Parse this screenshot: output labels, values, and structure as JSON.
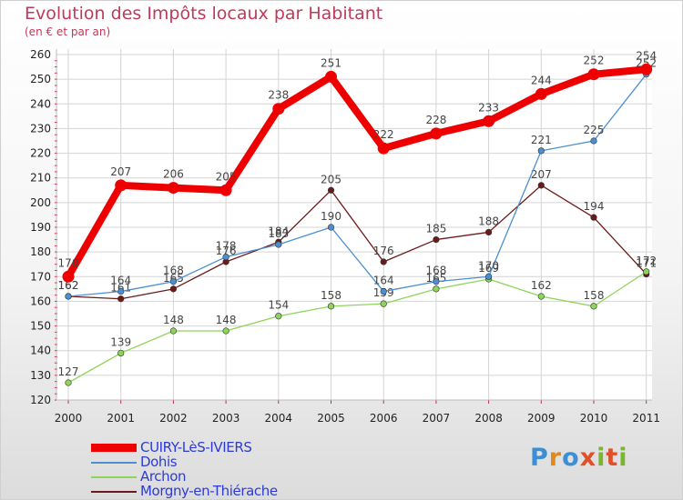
{
  "title": "Evolution des Impôts locaux par Habitant",
  "subtitle": "(en € et par an)",
  "logo": {
    "letters": [
      "P",
      "r",
      "o",
      "x",
      "i",
      "t",
      "i"
    ],
    "colors": [
      "#3a8fd6",
      "#e08a1e",
      "#3a8fd6",
      "#e0502a",
      "#7ab52e",
      "#e0502a",
      "#7ab52e"
    ]
  },
  "chart_data": {
    "type": "line",
    "title": "Evolution des Impôts locaux par Habitant",
    "subtitle": "(en € et par an)",
    "xlabel": "",
    "ylabel": "",
    "ylim": [
      120,
      260
    ],
    "yticks": [
      120,
      130,
      140,
      150,
      160,
      170,
      180,
      190,
      200,
      210,
      220,
      230,
      240,
      250,
      260
    ],
    "x": [
      "2000",
      "2001",
      "2002",
      "2003",
      "2004",
      "2005",
      "2006",
      "2007",
      "2008",
      "2009",
      "2010",
      "2011"
    ],
    "series": [
      {
        "name": "CUIRY-LèS-IVIERS",
        "color": "#ee0000",
        "values": [
          170,
          207,
          206,
          205,
          238,
          251,
          222,
          228,
          233,
          244,
          252,
          254
        ]
      },
      {
        "name": "Dohis",
        "color": "#4b8fd1",
        "values": [
          162,
          164,
          168,
          178,
          183,
          190,
          164,
          168,
          170,
          221,
          225,
          252
        ]
      },
      {
        "name": "Archon",
        "color": "#8fd45a",
        "values": [
          127,
          139,
          148,
          148,
          154,
          158,
          159,
          165,
          169,
          162,
          158,
          172
        ]
      },
      {
        "name": "Morgny-en-Thiérache",
        "color": "#6b1a1a",
        "values": [
          162,
          161,
          165,
          176,
          184,
          205,
          176,
          185,
          188,
          207,
          194,
          171
        ]
      }
    ]
  }
}
